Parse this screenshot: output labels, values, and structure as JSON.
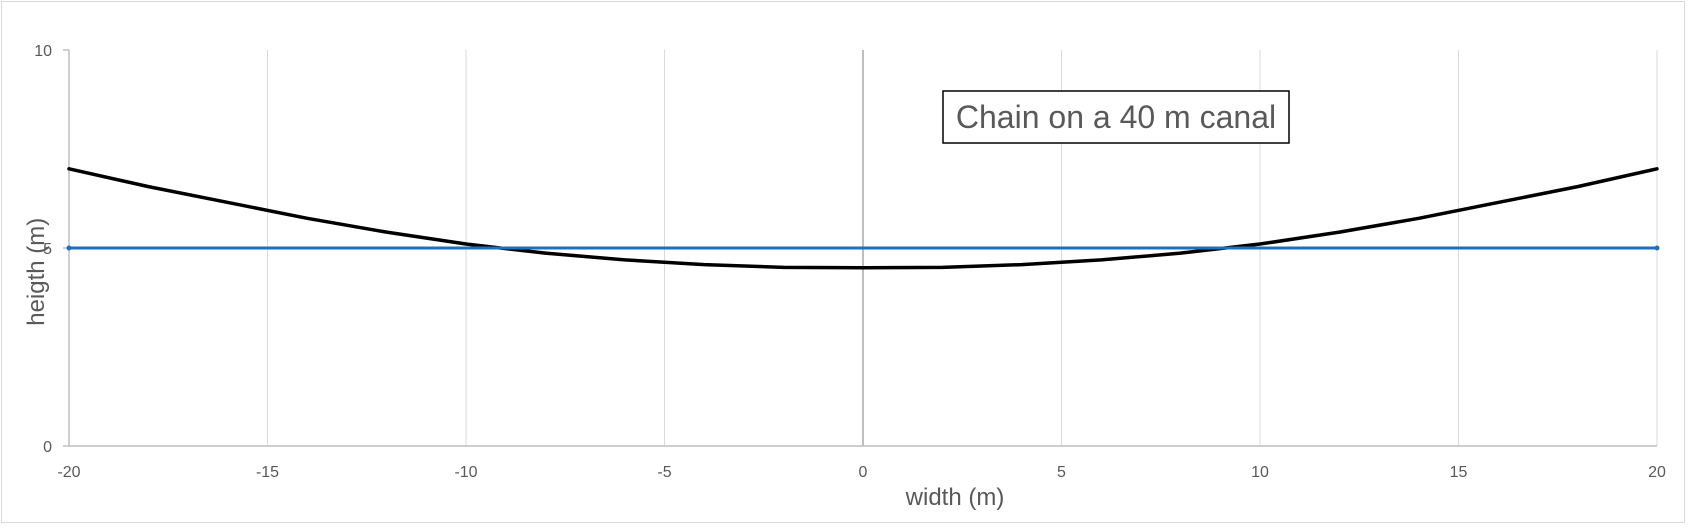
{
  "chart_data": {
    "type": "line",
    "annotation": "Chain on a 40 m canal",
    "xlabel": "width (m)",
    "ylabel": "heigth (m)",
    "xlim": [
      -20,
      20
    ],
    "ylim": [
      0,
      10
    ],
    "x_ticks": [
      -20,
      -15,
      -10,
      -5,
      0,
      5,
      10,
      15,
      20
    ],
    "y_ticks": [
      0,
      5,
      10
    ],
    "grid": "vertical",
    "series": [
      {
        "color": "#000000",
        "x": [
          -20,
          -18,
          -16,
          -14,
          -12,
          -10,
          -8,
          -6,
          -4,
          -2,
          0,
          2,
          4,
          6,
          8,
          10,
          12,
          14,
          16,
          18,
          20
        ],
        "y": [
          7.0,
          6.55,
          6.15,
          5.75,
          5.4,
          5.1,
          4.87,
          4.7,
          4.58,
          4.51,
          4.5,
          4.51,
          4.58,
          4.7,
          4.87,
          5.1,
          5.4,
          5.75,
          6.15,
          6.55,
          7.0
        ]
      },
      {
        "color": "#1f6fbf",
        "x": [
          -20,
          20
        ],
        "y": [
          5,
          5
        ]
      }
    ]
  }
}
